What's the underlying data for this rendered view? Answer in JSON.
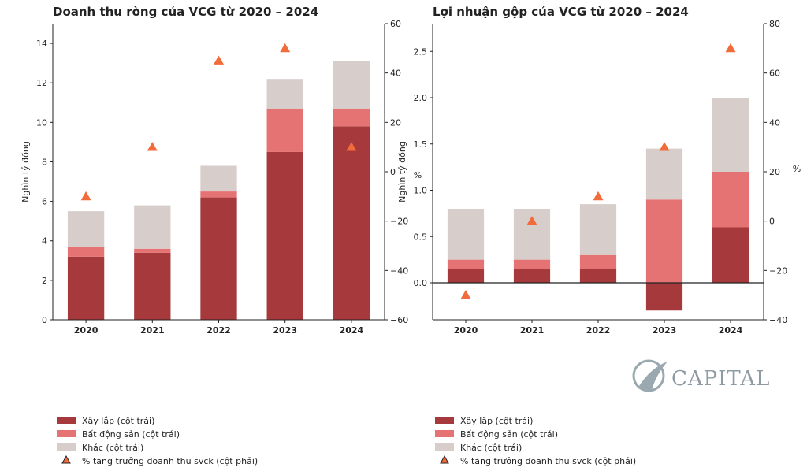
{
  "chart_data": [
    {
      "type": "bar",
      "title": "Doanh thu ròng của VCG từ 2020 – 2024",
      "categories": [
        "2020",
        "2021",
        "2022",
        "2023",
        "2024"
      ],
      "ylabel": "Nghìn tỷ đồng",
      "y2label": "",
      "ylim": [
        0,
        15
      ],
      "yticks": [
        0,
        2,
        4,
        6,
        8,
        10,
        12,
        14
      ],
      "y2lim": [
        -60,
        60
      ],
      "y2ticks": [
        -60,
        -40,
        -20,
        0,
        20,
        40,
        60
      ],
      "stacked": true,
      "series": [
        {
          "name": "Xây lắp (cột trái)",
          "values": [
            3.2,
            3.4,
            6.2,
            8.5,
            9.8
          ],
          "color": "#a5393b"
        },
        {
          "name": "Bất động sản (cột trái)",
          "values": [
            0.5,
            0.2,
            0.3,
            2.2,
            0.9
          ],
          "color": "#e57373"
        },
        {
          "name": "Khác (cột trái)",
          "values": [
            1.8,
            2.2,
            1.3,
            1.5,
            2.4
          ],
          "color": "#d7cdca"
        }
      ],
      "growth": {
        "name": "% tăng trưởng doanh thu svck (cột phải)",
        "values": [
          -10,
          10,
          45,
          50,
          10
        ],
        "color": "#f26b3a"
      },
      "grid": false,
      "legend": "bottom-left"
    },
    {
      "type": "bar",
      "title": "Lợi nhuận gộp của VCG từ 2020 – 2024",
      "categories": [
        "2020",
        "2021",
        "2022",
        "2023",
        "2024"
      ],
      "ylabel": "Nghìn tỷ đồng",
      "y2label": "%",
      "ylim": [
        -0.4,
        2.8
      ],
      "yticks": [
        0.0,
        0.5,
        1.0,
        1.5,
        2.0,
        2.5
      ],
      "y2lim": [
        -40,
        80
      ],
      "y2ticks": [
        -40,
        -20,
        0,
        20,
        40,
        60,
        80
      ],
      "stacked": true,
      "series": [
        {
          "name": "Xây lắp (cột trái)",
          "values": [
            0.15,
            0.15,
            0.15,
            -0.3,
            0.6
          ],
          "color": "#a5393b"
        },
        {
          "name": "Bất động sản (cột trái)",
          "values": [
            0.1,
            0.1,
            0.15,
            0.9,
            0.6
          ],
          "color": "#e57373"
        },
        {
          "name": "Khác (cột trái)",
          "values": [
            0.55,
            0.55,
            0.55,
            0.55,
            0.8
          ],
          "color": "#d7cdca"
        }
      ],
      "growth": {
        "name": "% tăng trưởng doanh thu svck (cột phải)",
        "values": [
          -30,
          0,
          10,
          30,
          70
        ],
        "color": "#f26b3a"
      },
      "grid": false,
      "legend": "bottom-left"
    }
  ],
  "extra_labels": {
    "left_pct": "%"
  },
  "logo": {
    "text": "CAPITAL"
  }
}
